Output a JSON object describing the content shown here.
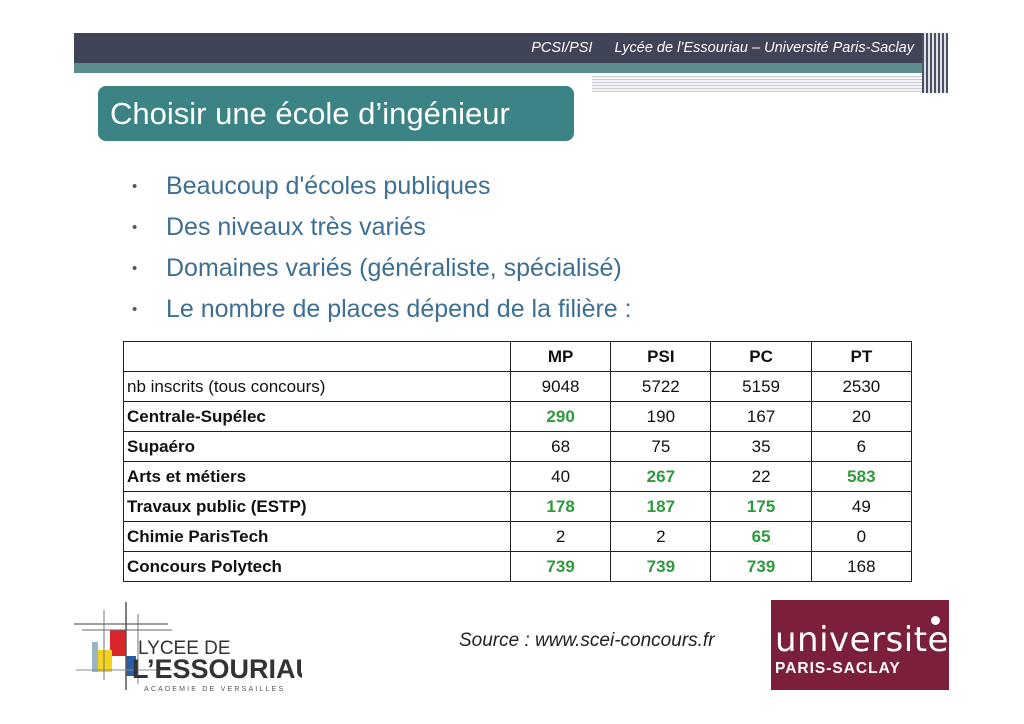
{
  "header": {
    "course": "PCSI/PSI",
    "school": "Lycée de l’Essouriau – Université Paris-Saclay"
  },
  "title": "Choisir une école d’ingénieur",
  "bullets": [
    "Beaucoup d'écoles publiques",
    "Des niveaux très variés",
    "Domaines variés (généraliste, spécialisé)",
    "Le nombre de places dépend de la filière :"
  ],
  "table": {
    "columns": [
      "",
      "MP",
      "PSI",
      "PC",
      "PT"
    ],
    "rows": [
      {
        "label": "nb inscrits (tous concours)",
        "values": [
          "9048",
          "5722",
          "5159",
          "2530"
        ]
      },
      {
        "label": "Centrale-Supélec",
        "values": [
          "290",
          "190",
          "167",
          "20"
        ]
      },
      {
        "label": "Supaéro",
        "values": [
          "68",
          "75",
          "35",
          "6"
        ]
      },
      {
        "label": "Arts et métiers",
        "values": [
          "40",
          "267",
          "22",
          "583"
        ]
      },
      {
        "label": "Travaux public (ESTP)",
        "values": [
          "178",
          "187",
          "175",
          "49"
        ]
      },
      {
        "label": "Chimie ParisTech",
        "values": [
          "2",
          "2",
          "65",
          "0"
        ]
      },
      {
        "label": "Concours Polytech",
        "values": [
          "739",
          "739",
          "739",
          "168"
        ]
      }
    ],
    "highlight_color": "#2e9a3c"
  },
  "source": "Source : www.scei-concours.fr",
  "logos": {
    "lycee_line1": "LYCEE DE",
    "lycee_line2": "L’ESSOURIAU",
    "lycee_line3": "ACADEMIE DE VERSAILLES",
    "university_name": "universite",
    "university_sub": "PARIS-SACLAY"
  },
  "colors": {
    "header_bar": "#3f4457",
    "title_box": "#3b8384",
    "bullet_text": "#3d6f94",
    "university_brand": "#7b1f3a"
  }
}
